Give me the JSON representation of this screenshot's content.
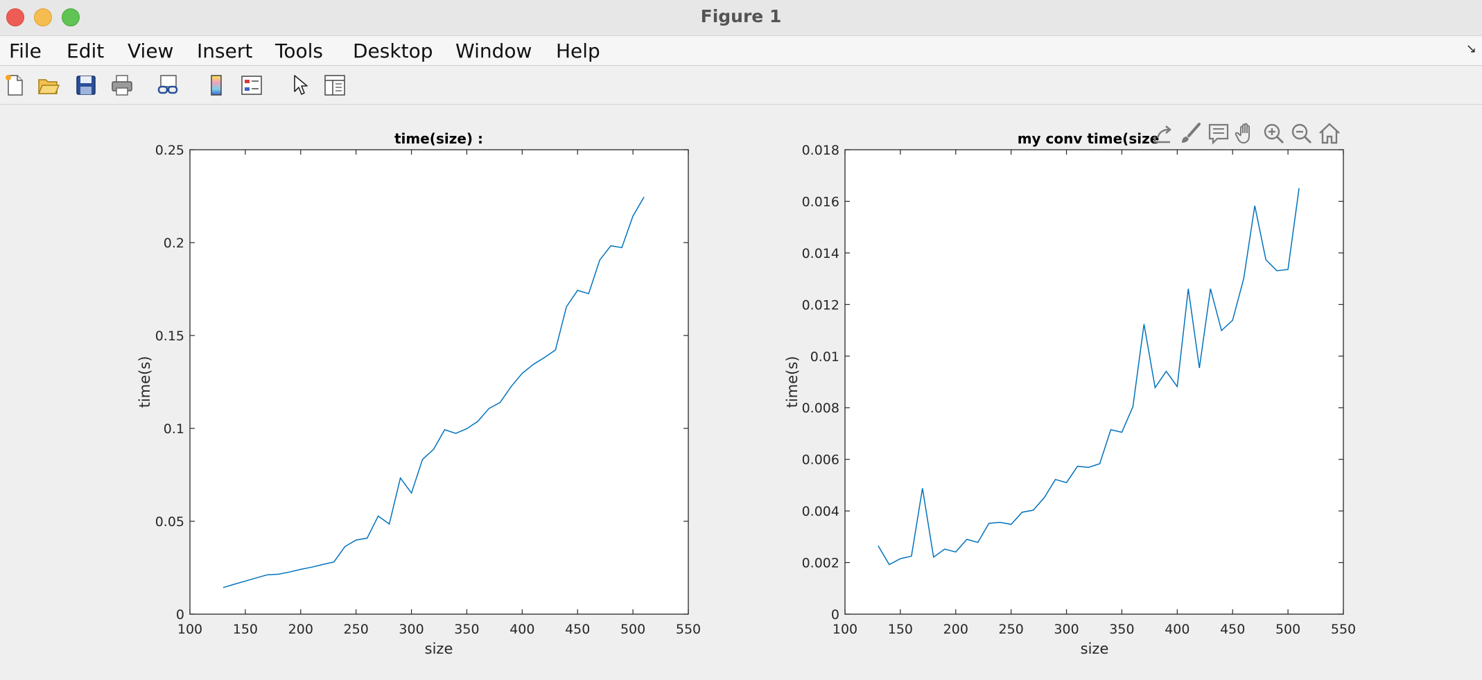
{
  "window": {
    "title": "Figure 1"
  },
  "menu": [
    "File",
    "Edit",
    "View",
    "Insert",
    "Tools",
    "Desktop",
    "Window",
    "Help"
  ],
  "toolbar_icons": [
    "new-figure-icon",
    "open-file-icon",
    "save-icon",
    "print-icon",
    "link-plot-icon",
    "colorbar-icon",
    "legend-icon",
    "pointer-icon",
    "property-inspector-icon"
  ],
  "axes_toolbar_icons": [
    "export-icon",
    "brush-icon",
    "data-tips-icon",
    "pan-icon",
    "zoom-in-icon",
    "zoom-out-icon",
    "home-icon"
  ],
  "colors": {
    "line": "#0072bd",
    "axes": "#262626"
  },
  "chart_data": [
    {
      "type": "line",
      "title": "time(size) :",
      "xlabel": "size",
      "ylabel": "time(s)",
      "xlim": [
        100,
        550
      ],
      "ylim": [
        0,
        0.25
      ],
      "xticks": [
        "100",
        "150",
        "200",
        "250",
        "300",
        "350",
        "400",
        "450",
        "500",
        "550"
      ],
      "yticks": [
        "0",
        "0.05",
        "0.1",
        "0.15",
        "0.2",
        "0.25"
      ],
      "grid": false,
      "x": [
        130,
        140,
        150,
        160,
        170,
        180,
        190,
        200,
        210,
        220,
        230,
        240,
        250,
        260,
        270,
        280,
        290,
        300,
        310,
        320,
        330,
        340,
        350,
        360,
        370,
        380,
        390,
        400,
        410,
        420,
        430,
        440,
        450,
        460,
        470,
        480,
        490,
        500,
        510
      ],
      "y": [
        0.0143,
        0.0161,
        0.0178,
        0.0195,
        0.0212,
        0.0215,
        0.0227,
        0.0241,
        0.0253,
        0.0267,
        0.0281,
        0.0364,
        0.0399,
        0.0409,
        0.0528,
        0.0485,
        0.0733,
        0.0652,
        0.0833,
        0.0887,
        0.0993,
        0.0973,
        0.0998,
        0.1038,
        0.1107,
        0.1139,
        0.1225,
        0.1296,
        0.1344,
        0.1381,
        0.1422,
        0.1655,
        0.1743,
        0.1725,
        0.1906,
        0.1983,
        0.1973,
        0.2143,
        0.2245
      ]
    },
    {
      "type": "line",
      "title": "my conv time(size",
      "xlabel": "size",
      "ylabel": "time(s)",
      "xlim": [
        100,
        550
      ],
      "ylim": [
        0,
        0.018
      ],
      "xticks": [
        "100",
        "150",
        "200",
        "250",
        "300",
        "350",
        "400",
        "450",
        "500",
        "550"
      ],
      "yticks": [
        "0",
        "0.002",
        "0.004",
        "0.006",
        "0.008",
        "0.01",
        "0.012",
        "0.014",
        "0.016",
        "0.018"
      ],
      "grid": false,
      "x": [
        130,
        140,
        150,
        160,
        170,
        180,
        190,
        200,
        210,
        220,
        230,
        240,
        250,
        260,
        270,
        280,
        290,
        300,
        310,
        320,
        330,
        340,
        350,
        360,
        370,
        380,
        390,
        400,
        410,
        420,
        430,
        440,
        450,
        460,
        470,
        480,
        490,
        500,
        510
      ],
      "y": [
        0.00265,
        0.00192,
        0.00215,
        0.00225,
        0.00488,
        0.00221,
        0.00252,
        0.00241,
        0.0029,
        0.00278,
        0.00352,
        0.00356,
        0.00348,
        0.00395,
        0.00403,
        0.00452,
        0.00522,
        0.0051,
        0.00573,
        0.00569,
        0.00583,
        0.00715,
        0.00705,
        0.00804,
        0.01124,
        0.00878,
        0.00941,
        0.00882,
        0.01261,
        0.00954,
        0.01261,
        0.01099,
        0.01139,
        0.013,
        0.01583,
        0.01374,
        0.01331,
        0.01336,
        0.01651
      ]
    }
  ]
}
